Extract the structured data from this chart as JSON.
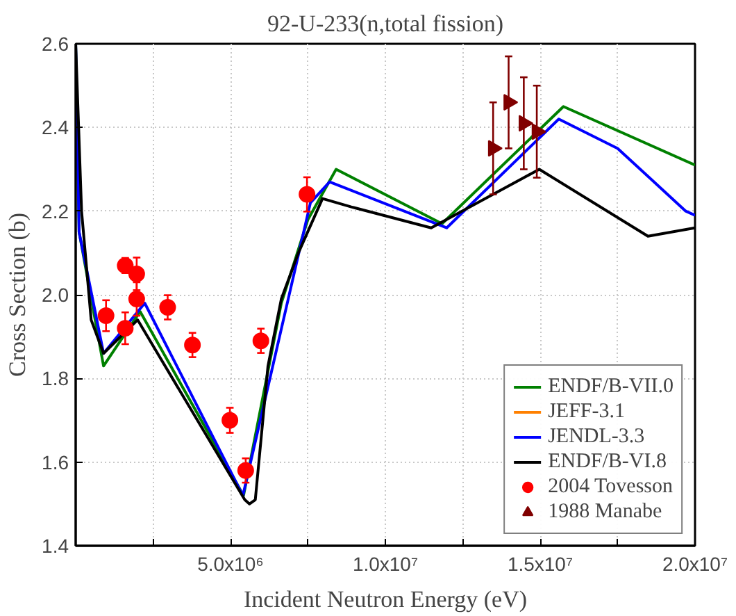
{
  "chart_data": {
    "type": "line",
    "title": "92-U-233(n,total fission)",
    "xlabel": "Incident Neutron Energy (eV)",
    "ylabel": "Cross Section (b)",
    "xlim": [
      0,
      20000000
    ],
    "ylim": [
      1.4,
      2.6
    ],
    "xticks": [
      {
        "value": 0,
        "label": null
      },
      {
        "value": 2500000,
        "label": null
      },
      {
        "value": 5000000,
        "label": "5.0x10⁶"
      },
      {
        "value": 7500000,
        "label": null
      },
      {
        "value": 10000000,
        "label": "1.0x10⁷"
      },
      {
        "value": 12500000,
        "label": null
      },
      {
        "value": 15000000,
        "label": "1.5x10⁷"
      },
      {
        "value": 17500000,
        "label": null
      },
      {
        "value": 20000000,
        "label": "2.0x10⁷"
      }
    ],
    "yticks": [
      {
        "value": 1.4,
        "label": "1.4"
      },
      {
        "value": 1.6,
        "label": "1.6"
      },
      {
        "value": 1.8,
        "label": "1.8"
      },
      {
        "value": 2.0,
        "label": "2.0"
      },
      {
        "value": 2.2,
        "label": "2.2"
      },
      {
        "value": 2.4,
        "label": "2.4"
      },
      {
        "value": 2.6,
        "label": "2.6"
      }
    ],
    "grid": true,
    "legend": "bottom right",
    "series": [
      {
        "name": "ENDF/B-VII.0",
        "color": "#008000",
        "x": [
          0,
          110000,
          900000,
          2080000,
          5420000,
          6640000,
          7500000,
          8410000,
          11830000,
          15750000,
          20000000
        ],
        "values": [
          2.6,
          2.15,
          1.83,
          1.96,
          1.52,
          1.98,
          2.18,
          2.3,
          2.17,
          2.45,
          2.31
        ]
      },
      {
        "name": "JEFF-3.1",
        "color": "#ff8000"
      },
      {
        "name": "JENDL-3.3",
        "color": "#0000ff",
        "x": [
          0,
          110000,
          900000,
          2230000,
          5400000,
          7580000,
          8200000,
          11980000,
          15600000,
          17500000,
          19700000,
          20000000
        ],
        "values": [
          2.6,
          2.15,
          1.86,
          1.98,
          1.52,
          2.22,
          2.27,
          2.16,
          2.42,
          2.35,
          2.2,
          2.19
        ]
      },
      {
        "name": "ENDF/B-VI.8",
        "color": "#000000",
        "x": [
          0,
          190000,
          500000,
          900000,
          2000000,
          5460000,
          5610000,
          5800000,
          6210000,
          6640000,
          7190000,
          7970000,
          8900000,
          11480000,
          14970000,
          18480000,
          20000000
        ],
        "values": [
          2.6,
          2.2,
          1.94,
          1.86,
          1.94,
          1.51,
          1.5,
          1.51,
          1.83,
          1.99,
          2.1,
          2.23,
          2.21,
          2.16,
          2.3,
          2.14,
          2.16
        ]
      },
      {
        "name": "2004 Tovesson",
        "type": "scatter",
        "marker": "circle",
        "color": "#ff0000",
        "x": [
          980000,
          1600000,
          1600000,
          1970000,
          1970000,
          2970000,
          3770000,
          4980000,
          5490000,
          5980000,
          7470000
        ],
        "values": [
          1.95,
          1.92,
          2.07,
          2.05,
          1.99,
          1.97,
          1.88,
          1.7,
          1.58,
          1.89,
          2.24
        ],
        "errors": [
          0.037,
          0.038,
          0.018,
          0.039,
          0.04,
          0.029,
          0.029,
          0.03,
          0.029,
          0.029,
          0.041
        ]
      },
      {
        "name": "1988 Manabe",
        "type": "scatter",
        "marker": "triangle",
        "color": "#800000",
        "x": [
          13480000,
          13980000,
          14470000,
          14890000
        ],
        "values": [
          2.35,
          2.46,
          2.41,
          2.39
        ],
        "errors": [
          [
            2.24,
            2.46
          ],
          [
            2.35,
            2.57
          ],
          [
            2.3,
            2.52
          ],
          [
            2.28,
            2.5
          ]
        ]
      }
    ]
  }
}
